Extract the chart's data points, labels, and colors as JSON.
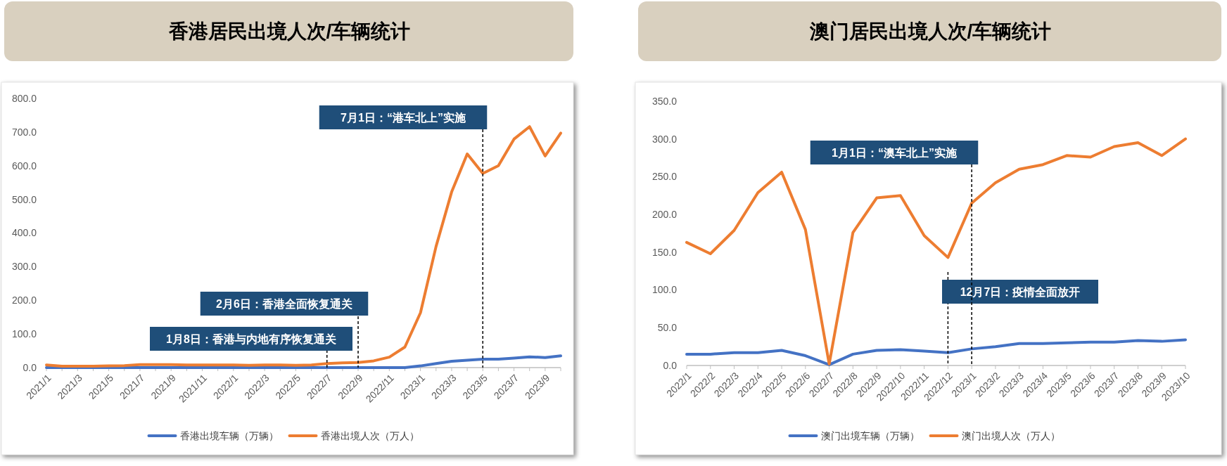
{
  "chart_data": [
    {
      "type": "line",
      "title": "香港居民出境人次/车辆统计",
      "categories": [
        "2021/1",
        null,
        "2021/3",
        null,
        "2021/5",
        null,
        "2021/7",
        null,
        "2021/9",
        null,
        "2021/11",
        null,
        "2022/1",
        null,
        "2022/3",
        null,
        "2022/5",
        null,
        "2022/7",
        null,
        "2022/9",
        null,
        "2022/11",
        null,
        "2023/1",
        null,
        "2023/3",
        null,
        "2023/5",
        null,
        "2023/7",
        null,
        "2023/9",
        null
      ],
      "series": [
        {
          "name": "香港出境车辆（万辆）",
          "color": "#4472c4",
          "values": [
            0,
            0,
            0,
            0,
            0,
            0,
            0,
            0,
            0,
            0,
            0,
            0,
            0,
            0,
            0,
            0,
            0,
            0,
            0,
            0,
            0,
            0,
            0,
            0,
            5,
            12,
            19,
            22,
            25,
            25,
            28,
            32,
            30,
            35
          ]
        },
        {
          "name": "香港出境人次（万人）",
          "color": "#ed7d31",
          "values": [
            8,
            4,
            4,
            4,
            5,
            6,
            9,
            9,
            9,
            8,
            8,
            8,
            8,
            7,
            8,
            8,
            7,
            8,
            12,
            14,
            15,
            20,
            31,
            61,
            163,
            360,
            522,
            635,
            577,
            600,
            679,
            716,
            629,
            697
          ]
        }
      ],
      "ylim": [
        0,
        800
      ],
      "yticks": [
        {
          "value": 0,
          "label": "0.0"
        },
        {
          "value": 100,
          "label": "100.0"
        },
        {
          "value": 200,
          "label": "200.0"
        },
        {
          "value": 300,
          "label": "300.0"
        },
        {
          "value": 400,
          "label": "400.0"
        },
        {
          "value": 500,
          "label": "500.0"
        },
        {
          "value": 600,
          "label": "600.0"
        },
        {
          "value": 700,
          "label": "700.0"
        },
        {
          "value": 800,
          "label": "800.0"
        }
      ],
      "ref_lines": [
        {
          "axis": "x",
          "value": "2022/7",
          "label": "1月8日：香港与内地有序恢复通关",
          "color": "#000000",
          "line_style": "dashed"
        },
        {
          "axis": "x",
          "value": "2022/9",
          "label": "2月6日：香港全面恢复通关",
          "color": "#000000",
          "line_style": "dashed"
        },
        {
          "axis": "x",
          "value": "2023/5",
          "label": "7月1日：“港车北上”实施",
          "color": "#000000",
          "line_style": "dashed"
        }
      ],
      "grid": false,
      "legend": "bottom",
      "marker": "none",
      "line_style": "solid"
    },
    {
      "type": "line",
      "title": "澳门居民出境人次/车辆统计",
      "categories": [
        "2022/1",
        "2022/2",
        "2022/3",
        "2022/4",
        "2022/5",
        "2022/6",
        "2022/7",
        "2022/8",
        "2022/9",
        "2022/10",
        "2022/11",
        "2022/12",
        "2023/1",
        "2023/2",
        "2023/3",
        "2023/4",
        "2023/5",
        "2023/6",
        "2023/7",
        "2023/8",
        "2023/9",
        "2023/10"
      ],
      "series": [
        {
          "name": "澳门出境车辆（万辆）",
          "color": "#4472c4",
          "values": [
            15,
            15,
            17,
            17,
            20,
            13,
            1,
            15,
            20,
            21,
            19,
            17,
            22,
            25,
            29,
            29,
            30,
            31,
            31,
            33,
            32,
            34
          ]
        },
        {
          "name": "澳门出境人次（万人）",
          "color": "#ed7d31",
          "values": [
            163,
            148,
            179,
            229,
            256,
            180,
            2,
            176,
            222,
            225,
            172,
            143,
            215,
            242,
            260,
            266,
            278,
            276,
            290,
            295,
            278,
            300
          ]
        }
      ],
      "ylim": [
        0,
        350
      ],
      "yticks": [
        {
          "value": 0,
          "label": "0.0"
        },
        {
          "value": 50,
          "label": "50.0"
        },
        {
          "value": 100,
          "label": "100.0"
        },
        {
          "value": 150,
          "label": "150.0"
        },
        {
          "value": 200,
          "label": "200.0"
        },
        {
          "value": 250,
          "label": "250.0"
        },
        {
          "value": 300,
          "label": "300.0"
        },
        {
          "value": 350,
          "label": "350.0"
        }
      ],
      "ref_lines": [
        {
          "axis": "x",
          "value": "2022/12",
          "label": "12月7日：疫情全面放开",
          "color": "#000000",
          "line_style": "dashed"
        },
        {
          "axis": "x",
          "value": "2023/1",
          "label": "1月1日：“澳车北上”实施",
          "color": "#000000",
          "line_style": "dashed"
        }
      ],
      "grid": false,
      "legend": "bottom",
      "marker": "none",
      "line_style": "solid"
    }
  ]
}
